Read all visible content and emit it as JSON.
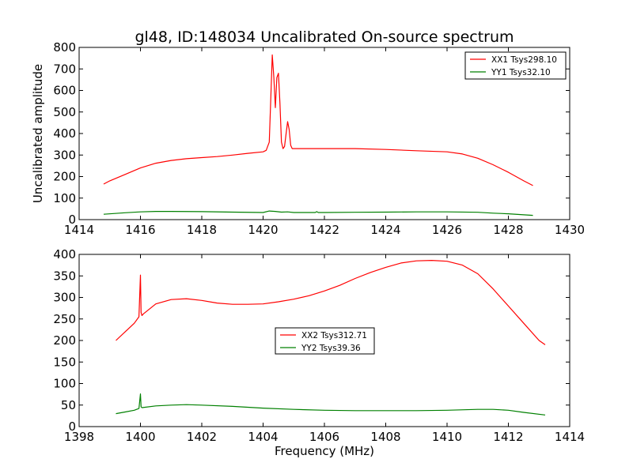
{
  "title": "gl48, ID:148034 Uncalibrated On-source spectrum",
  "ylabel": "Uncalibrated amplitude",
  "xlabel": "Frequency (MHz)",
  "colors": {
    "red": "#ff0000",
    "green": "#008000"
  },
  "chart_data": [
    {
      "type": "line",
      "xlim": [
        1414,
        1430
      ],
      "ylim": [
        0,
        800
      ],
      "xticks": [
        1414,
        1416,
        1418,
        1420,
        1422,
        1424,
        1426,
        1428,
        1430
      ],
      "yticks": [
        0,
        100,
        200,
        300,
        400,
        500,
        600,
        700,
        800
      ],
      "legend_position": "top-right",
      "series": [
        {
          "name": "XX1 Tsys298.10",
          "color": "red",
          "x": [
            1414.8,
            1415.0,
            1415.5,
            1416.0,
            1416.5,
            1417.0,
            1417.5,
            1418.0,
            1418.5,
            1419.0,
            1419.5,
            1420.0,
            1420.1,
            1420.2,
            1420.25,
            1420.3,
            1420.35,
            1420.4,
            1420.45,
            1420.5,
            1420.55,
            1420.6,
            1420.65,
            1420.7,
            1420.75,
            1420.8,
            1420.85,
            1420.9,
            1420.95,
            1421.0,
            1421.1,
            1421.5,
            1422.0,
            1423.0,
            1424.0,
            1425.0,
            1426.0,
            1426.5,
            1427.0,
            1427.5,
            1428.0,
            1428.5,
            1428.8
          ],
          "y": [
            165,
            180,
            210,
            240,
            262,
            275,
            283,
            288,
            293,
            300,
            308,
            315,
            322,
            360,
            560,
            765,
            660,
            520,
            660,
            680,
            540,
            360,
            330,
            340,
            400,
            455,
            420,
            345,
            330,
            330,
            330,
            330,
            330,
            330,
            326,
            320,
            315,
            305,
            285,
            255,
            220,
            180,
            158
          ]
        },
        {
          "name": "YY1 Tsys32.10",
          "color": "green",
          "x": [
            1414.8,
            1415.5,
            1416.0,
            1416.5,
            1417.0,
            1418.0,
            1419.0,
            1420.0,
            1420.2,
            1420.4,
            1420.6,
            1420.8,
            1421.0,
            1421.7,
            1421.75,
            1421.8,
            1422.0,
            1423.0,
            1424.0,
            1425.0,
            1426.0,
            1427.0,
            1427.5,
            1428.0,
            1428.8
          ],
          "y": [
            25,
            32,
            36,
            38,
            38,
            37,
            35,
            33,
            40,
            38,
            35,
            36,
            33,
            33,
            37,
            33,
            33,
            34,
            35,
            36,
            36,
            34,
            30,
            27,
            20
          ]
        }
      ]
    },
    {
      "type": "line",
      "xlim": [
        1398,
        1414
      ],
      "ylim": [
        0,
        400
      ],
      "xticks": [
        1398,
        1400,
        1402,
        1404,
        1406,
        1408,
        1410,
        1412,
        1414
      ],
      "yticks": [
        0,
        50,
        100,
        150,
        200,
        250,
        300,
        350,
        400
      ],
      "legend_position": "center",
      "series": [
        {
          "name": "XX2 Tsys312.71",
          "color": "red",
          "x": [
            1399.2,
            1399.5,
            1399.8,
            1399.95,
            1400.0,
            1400.02,
            1400.05,
            1400.1,
            1400.5,
            1401.0,
            1401.5,
            1402.0,
            1402.5,
            1403.0,
            1403.5,
            1404.0,
            1404.5,
            1405.0,
            1405.5,
            1406.0,
            1406.5,
            1407.0,
            1407.5,
            1408.0,
            1408.5,
            1409.0,
            1409.5,
            1410.0,
            1410.5,
            1411.0,
            1411.5,
            1412.0,
            1412.5,
            1413.0,
            1413.2
          ],
          "y": [
            200,
            220,
            240,
            255,
            352,
            265,
            258,
            262,
            285,
            295,
            297,
            293,
            287,
            284,
            284,
            285,
            290,
            296,
            304,
            315,
            328,
            344,
            358,
            370,
            380,
            385,
            386,
            384,
            375,
            355,
            320,
            280,
            240,
            200,
            190
          ]
        },
        {
          "name": "YY2 Tsys39.36",
          "color": "green",
          "x": [
            1399.2,
            1399.5,
            1399.8,
            1399.95,
            1400.0,
            1400.02,
            1400.05,
            1400.5,
            1401.0,
            1401.5,
            1402.0,
            1403.0,
            1404.0,
            1405.0,
            1406.0,
            1407.0,
            1408.0,
            1409.0,
            1410.0,
            1411.0,
            1411.5,
            1412.0,
            1412.5,
            1413.2
          ],
          "y": [
            30,
            34,
            38,
            42,
            76,
            46,
            44,
            48,
            50,
            51,
            50,
            47,
            43,
            40,
            38,
            37,
            37,
            37,
            38,
            40,
            40,
            38,
            33,
            27
          ]
        }
      ]
    }
  ]
}
